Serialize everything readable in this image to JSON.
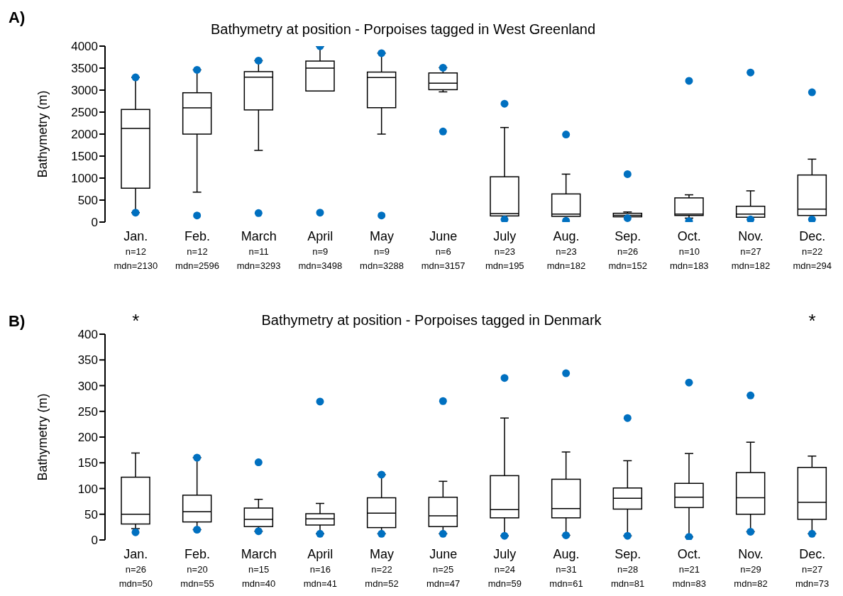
{
  "chart_data": [
    {
      "type": "box",
      "title": "Bathymetry at position - Porpoises tagged in West Greenland",
      "ylabel": "Bathymetry (m)",
      "ylim": [
        0,
        4000
      ],
      "yticks": [
        0,
        500,
        1000,
        1500,
        2000,
        2500,
        3000,
        3500,
        4000
      ],
      "categories": [
        "Jan.\nn=12\nmdn=2130",
        "Feb.\nn=12\nmdn=2596",
        "March\nn=11\nmdn=3293",
        "April\nn=9\nmdn=3498",
        "May\nn=9\nmdn=3288",
        "June\nn=6\nmdn=3157",
        "July\nn=23\nmdn=195",
        "Aug.\nn=23\nmdn=182",
        "Sep.\nn=26\nmdn=152",
        "Oct.\nn=10\nmdn=183",
        "Nov.\nn=27\nmdn=182",
        "Dec.\nn=22\nmdn=294"
      ],
      "boxes": [
        {
          "low": 215,
          "q1": 770,
          "median": 2130,
          "q3": 2560,
          "high": 3290,
          "outliers": [
            215,
            3290
          ]
        },
        {
          "low": 680,
          "q1": 2000,
          "median": 2596,
          "q3": 2940,
          "high": 3460,
          "outliers": [
            150,
            3460
          ]
        },
        {
          "low": 1630,
          "q1": 2550,
          "median": 3293,
          "q3": 3420,
          "high": 3670,
          "outliers": [
            205,
            3670
          ]
        },
        {
          "low": 2980,
          "q1": 2980,
          "median": 3498,
          "q3": 3660,
          "high": 4000,
          "outliers": [
            215,
            4000
          ]
        },
        {
          "low": 2000,
          "q1": 2600,
          "median": 3288,
          "q3": 3410,
          "high": 3840,
          "outliers": [
            150,
            3840
          ]
        },
        {
          "low": 2960,
          "q1": 3010,
          "median": 3157,
          "q3": 3390,
          "high": 3510,
          "outliers": [
            2060,
            3510
          ]
        },
        {
          "low": 140,
          "q1": 140,
          "median": 195,
          "q3": 1030,
          "high": 2150,
          "outliers": [
            60,
            2690
          ]
        },
        {
          "low": 130,
          "q1": 130,
          "median": 182,
          "q3": 640,
          "high": 1090,
          "outliers": [
            30,
            1990
          ]
        },
        {
          "low": 120,
          "q1": 120,
          "median": 152,
          "q3": 200,
          "high": 230,
          "outliers": [
            90,
            1090
          ]
        },
        {
          "low": 90,
          "q1": 150,
          "median": 183,
          "q3": 550,
          "high": 620,
          "outliers": [
            20,
            3210
          ]
        },
        {
          "low": 110,
          "q1": 110,
          "median": 182,
          "q3": 360,
          "high": 710,
          "outliers": [
            60,
            3400
          ]
        },
        {
          "low": 150,
          "q1": 150,
          "median": 294,
          "q3": 1070,
          "high": 1430,
          "outliers": [
            60,
            2950
          ]
        }
      ],
      "annotations": [
        "A)"
      ]
    },
    {
      "type": "box",
      "title": "Bathymetry at position - Porpoises tagged in Denmark",
      "ylabel": "Bathymetry (m)",
      "ylim": [
        0,
        400
      ],
      "yticks": [
        0,
        50,
        100,
        150,
        200,
        250,
        300,
        350,
        400
      ],
      "categories": [
        "Jan.\nn=26\nmdn=50",
        "Feb.\nn=20\nmdn=55",
        "March\nn=15\nmdn=40",
        "April\nn=16\nmdn=41",
        "May\nn=22\nmdn=52",
        "June\nn=25\nmdn=47",
        "July\nn=24\nmdn=59",
        "Aug.\nn=31\nmdn=61",
        "Sep.\nn=28\nmdn=81",
        "Oct.\nn=21\nmdn=83",
        "Nov.\nn=29\nmdn=82",
        "Dec.\nn=27\nmdn=73"
      ],
      "boxes": [
        {
          "low": 22,
          "q1": 31,
          "median": 50,
          "q3": 122,
          "high": 169,
          "outliers": [
            15
          ]
        },
        {
          "low": 20,
          "q1": 35,
          "median": 55,
          "q3": 87,
          "high": 160,
          "outliers": [
            20,
            160
          ]
        },
        {
          "low": 17,
          "q1": 26,
          "median": 40,
          "q3": 62,
          "high": 79,
          "outliers": [
            17,
            151
          ]
        },
        {
          "low": 12,
          "q1": 29,
          "median": 41,
          "q3": 51,
          "high": 71,
          "outliers": [
            12,
            269
          ]
        },
        {
          "low": 12,
          "q1": 24,
          "median": 52,
          "q3": 82,
          "high": 127,
          "outliers": [
            12,
            127
          ]
        },
        {
          "low": 12,
          "q1": 26,
          "median": 47,
          "q3": 83,
          "high": 114,
          "outliers": [
            12,
            270
          ]
        },
        {
          "low": 8,
          "q1": 43,
          "median": 59,
          "q3": 125,
          "high": 237,
          "outliers": [
            8,
            315
          ]
        },
        {
          "low": 9,
          "q1": 43,
          "median": 61,
          "q3": 118,
          "high": 171,
          "outliers": [
            9,
            324
          ]
        },
        {
          "low": 8,
          "q1": 60,
          "median": 81,
          "q3": 101,
          "high": 154,
          "outliers": [
            8,
            237
          ]
        },
        {
          "low": 6,
          "q1": 63,
          "median": 83,
          "q3": 110,
          "high": 168,
          "outliers": [
            6,
            306
          ]
        },
        {
          "low": 16,
          "q1": 50,
          "median": 82,
          "q3": 131,
          "high": 190,
          "outliers": [
            16,
            281
          ]
        },
        {
          "low": 12,
          "q1": 40,
          "median": 73,
          "q3": 141,
          "high": 163,
          "outliers": [
            12
          ]
        }
      ],
      "annotations": [
        "B)",
        "*",
        "*"
      ]
    }
  ]
}
